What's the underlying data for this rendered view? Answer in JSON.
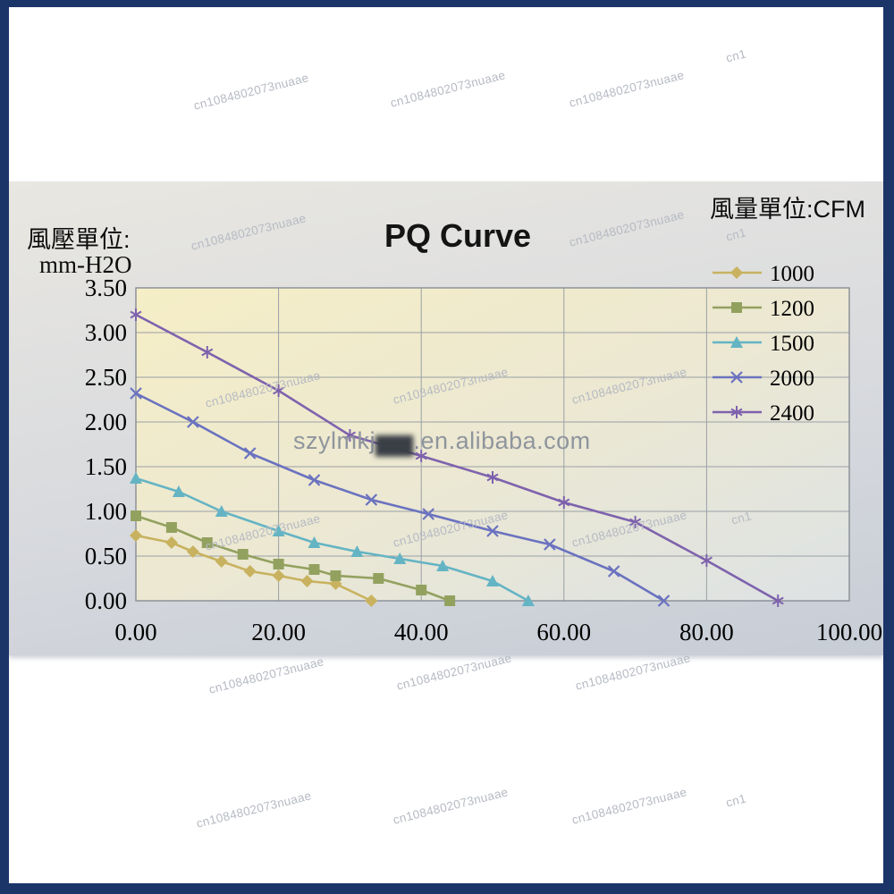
{
  "chart": {
    "title": "PQ Curve",
    "flow_unit_label": "風量單位:CFM",
    "pressure_unit_line1": "風壓單位:",
    "pressure_unit_line2": "mm-H2O"
  },
  "watermark": {
    "text": "cn1084802073nuaae",
    "short_text": "cn1",
    "center_prefix": "szylmkj",
    "center_blur": "▆▆",
    "center_suffix": ".en.alibaba.com"
  },
  "chart_data": {
    "type": "line",
    "title": "PQ Curve",
    "xlabel": "風量單位:CFM",
    "ylabel": "風壓單位: mm-H2O",
    "xlim": [
      0,
      100
    ],
    "ylim": [
      0,
      3.5
    ],
    "x_ticks": [
      "0.00",
      "20.00",
      "40.00",
      "60.00",
      "80.00",
      "100.00"
    ],
    "y_ticks": [
      "0.00",
      "0.50",
      "1.00",
      "1.50",
      "2.00",
      "2.50",
      "3.00",
      "3.50"
    ],
    "grid": true,
    "legend_position": "top-right",
    "legend_entries": [
      "1000",
      "1200",
      "1500",
      "2000",
      "2400"
    ],
    "series": [
      {
        "name": "1000",
        "color": "#c8b25f",
        "marker": "diamond",
        "points": [
          [
            0,
            0.73
          ],
          [
            5,
            0.65
          ],
          [
            8,
            0.55
          ],
          [
            12,
            0.44
          ],
          [
            16,
            0.33
          ],
          [
            20,
            0.28
          ],
          [
            24,
            0.22
          ],
          [
            28,
            0.19
          ],
          [
            33,
            0.0
          ]
        ]
      },
      {
        "name": "1200",
        "color": "#93a15f",
        "marker": "square",
        "points": [
          [
            0,
            0.95
          ],
          [
            5,
            0.82
          ],
          [
            10,
            0.65
          ],
          [
            15,
            0.52
          ],
          [
            20,
            0.41
          ],
          [
            25,
            0.35
          ],
          [
            28,
            0.28
          ],
          [
            34,
            0.25
          ],
          [
            40,
            0.12
          ],
          [
            44,
            0.0
          ]
        ]
      },
      {
        "name": "1500",
        "color": "#64b4c4",
        "marker": "triangle",
        "points": [
          [
            0,
            1.37
          ],
          [
            6,
            1.22
          ],
          [
            12,
            1.0
          ],
          [
            20,
            0.78
          ],
          [
            25,
            0.65
          ],
          [
            31,
            0.55
          ],
          [
            37,
            0.47
          ],
          [
            43,
            0.39
          ],
          [
            50,
            0.22
          ],
          [
            55,
            0.0
          ]
        ]
      },
      {
        "name": "2000",
        "color": "#6a72bf",
        "marker": "x",
        "points": [
          [
            0,
            2.32
          ],
          [
            8,
            2.0
          ],
          [
            16,
            1.65
          ],
          [
            25,
            1.35
          ],
          [
            33,
            1.13
          ],
          [
            41,
            0.97
          ],
          [
            50,
            0.78
          ],
          [
            58,
            0.63
          ],
          [
            67,
            0.33
          ],
          [
            74,
            0.0
          ]
        ]
      },
      {
        "name": "2400",
        "color": "#7e62ad",
        "marker": "star",
        "points": [
          [
            0,
            3.2
          ],
          [
            10,
            2.78
          ],
          [
            20,
            2.35
          ],
          [
            30,
            1.85
          ],
          [
            40,
            1.62
          ],
          [
            50,
            1.38
          ],
          [
            60,
            1.1
          ],
          [
            70,
            0.88
          ],
          [
            80,
            0.45
          ],
          [
            90,
            0.0
          ]
        ]
      }
    ]
  }
}
